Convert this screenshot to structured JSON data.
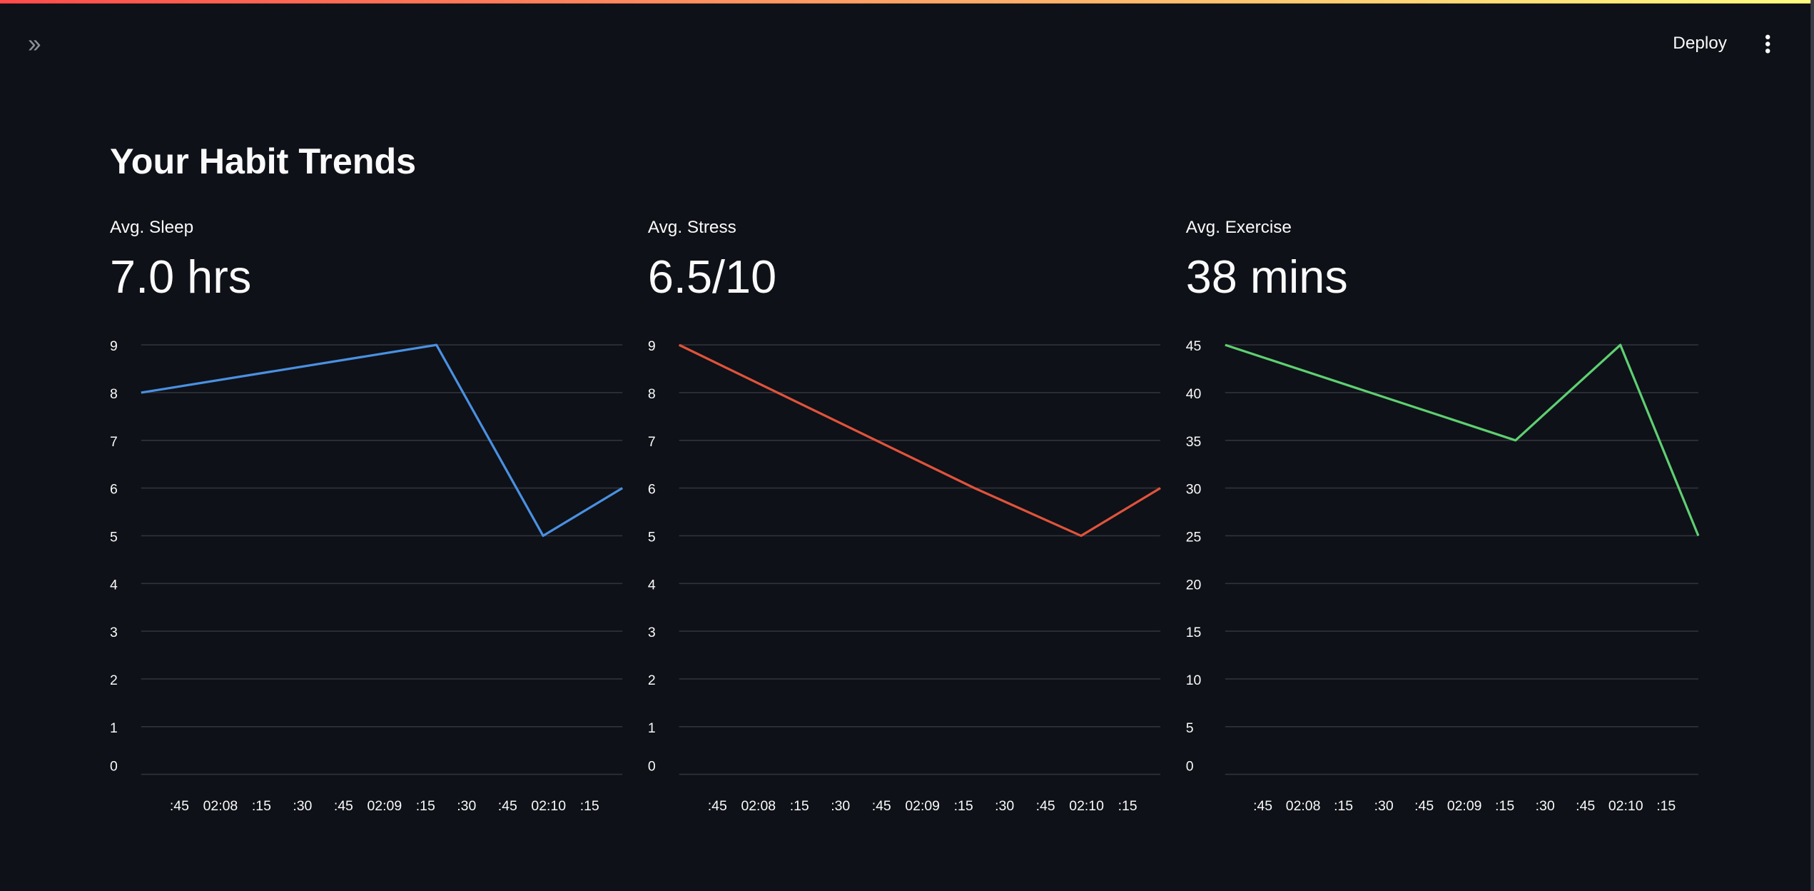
{
  "header": {
    "deploy_label": "Deploy",
    "expand_icon": "chevron-double-right-icon",
    "menu_icon": "kebab-menu-icon"
  },
  "page_title": "Your Habit Trends",
  "metrics": [
    {
      "label": "Avg. Sleep",
      "value": "7.0 hrs"
    },
    {
      "label": "Avg. Stress",
      "value": "6.5/10"
    },
    {
      "label": "Avg. Exercise",
      "value": "38 mins"
    }
  ],
  "chart_data": [
    {
      "type": "line",
      "title": "Avg. Sleep",
      "color": "#4a90e2",
      "x_seconds_after_0207": [
        31,
        139,
        178,
        207
      ],
      "values": [
        8,
        9,
        5,
        6
      ],
      "ylim": [
        0,
        9
      ],
      "yticks": [
        0,
        1,
        2,
        3,
        4,
        5,
        6,
        7,
        8,
        9
      ],
      "xticks": [
        {
          "t": 45,
          "label": ":45"
        },
        {
          "t": 60,
          "label": "02:08"
        },
        {
          "t": 75,
          "label": ":15"
        },
        {
          "t": 90,
          "label": ":30"
        },
        {
          "t": 105,
          "label": ":45"
        },
        {
          "t": 120,
          "label": "02:09"
        },
        {
          "t": 135,
          "label": ":15"
        },
        {
          "t": 150,
          "label": ":30"
        },
        {
          "t": 165,
          "label": ":45"
        },
        {
          "t": 180,
          "label": "02:10"
        },
        {
          "t": 195,
          "label": ":15"
        }
      ],
      "grid": true
    },
    {
      "type": "line",
      "title": "Avg. Stress",
      "color": "#e0533c",
      "x_seconds_after_0207": [
        31,
        139,
        178,
        207
      ],
      "values": [
        9,
        6,
        5,
        6
      ],
      "ylim": [
        0,
        9
      ],
      "yticks": [
        0,
        1,
        2,
        3,
        4,
        5,
        6,
        7,
        8,
        9
      ],
      "xticks": [
        {
          "t": 45,
          "label": ":45"
        },
        {
          "t": 60,
          "label": "02:08"
        },
        {
          "t": 75,
          "label": ":15"
        },
        {
          "t": 90,
          "label": ":30"
        },
        {
          "t": 105,
          "label": ":45"
        },
        {
          "t": 120,
          "label": "02:09"
        },
        {
          "t": 135,
          "label": ":15"
        },
        {
          "t": 150,
          "label": ":30"
        },
        {
          "t": 165,
          "label": ":45"
        },
        {
          "t": 180,
          "label": "02:10"
        },
        {
          "t": 195,
          "label": ":15"
        }
      ],
      "grid": true
    },
    {
      "type": "line",
      "title": "Avg. Exercise",
      "color": "#5fcf72",
      "x_seconds_after_0207": [
        31,
        139,
        178,
        207
      ],
      "values": [
        45,
        35,
        45,
        25
      ],
      "ylim": [
        0,
        45
      ],
      "yticks": [
        0,
        5,
        10,
        15,
        20,
        25,
        30,
        35,
        40,
        45
      ],
      "xticks": [
        {
          "t": 45,
          "label": ":45"
        },
        {
          "t": 60,
          "label": "02:08"
        },
        {
          "t": 75,
          "label": ":15"
        },
        {
          "t": 90,
          "label": ":30"
        },
        {
          "t": 105,
          "label": ":45"
        },
        {
          "t": 120,
          "label": "02:09"
        },
        {
          "t": 135,
          "label": ":15"
        },
        {
          "t": 150,
          "label": ":30"
        },
        {
          "t": 165,
          "label": ":45"
        },
        {
          "t": 180,
          "label": "02:10"
        },
        {
          "t": 195,
          "label": ":15"
        }
      ],
      "grid": true
    }
  ]
}
